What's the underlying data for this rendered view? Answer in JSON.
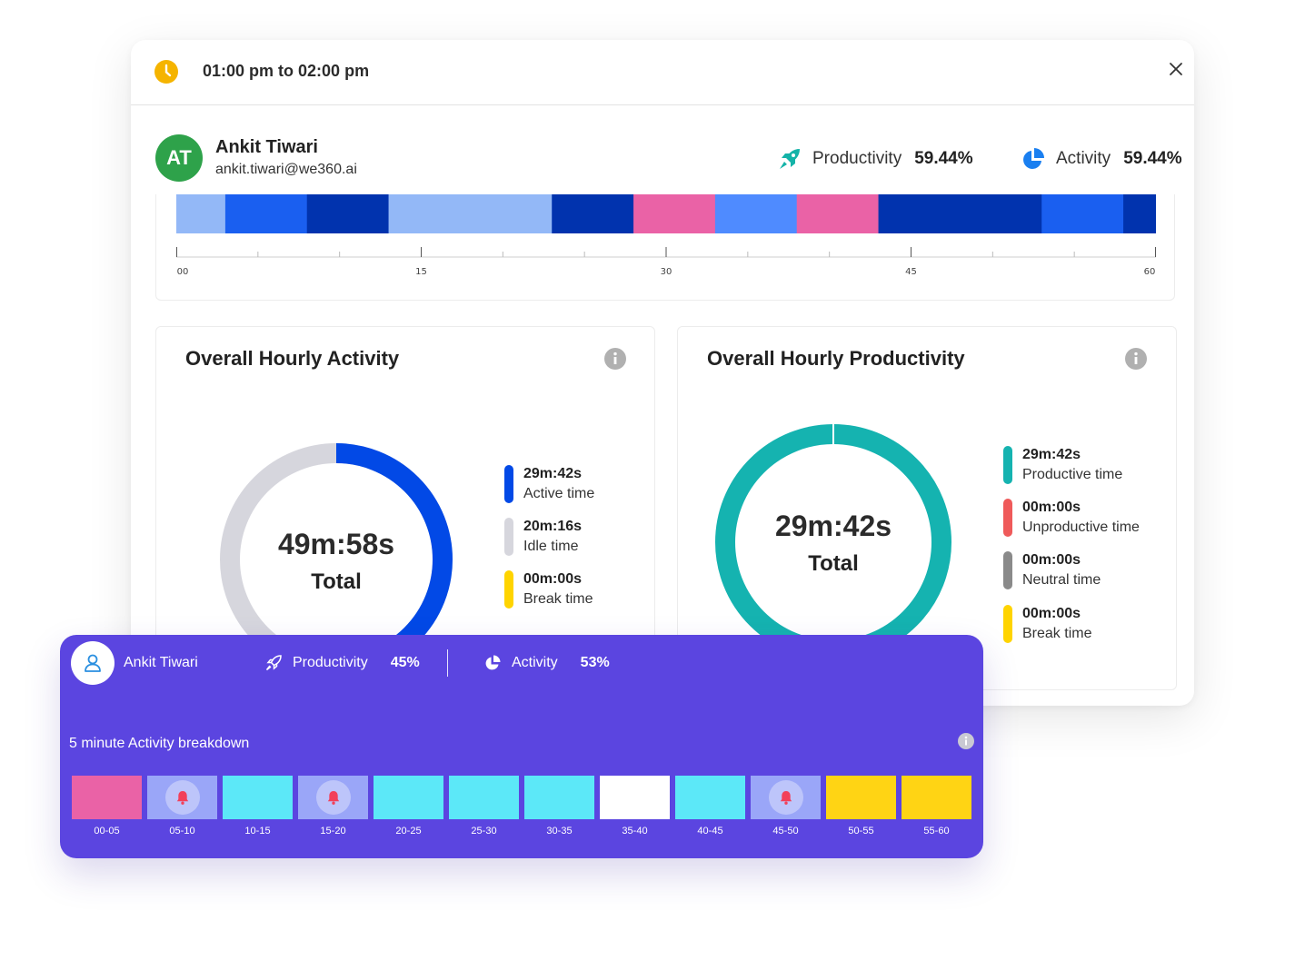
{
  "header": {
    "time_range": "01:00 pm to 02:00 pm"
  },
  "user": {
    "initials": "AT",
    "name": "Ankit Tiwari",
    "email": "ankit.tiwari@we360.ai",
    "productivity_label": "Productivity",
    "productivity_value": "59.44%",
    "activity_label": "Activity",
    "activity_value": "59.44%"
  },
  "timeline": {
    "segments_minutes": [
      3,
      5,
      5,
      10,
      5,
      5,
      5,
      5,
      10,
      5,
      2
    ],
    "segment_colors": [
      "#93b8f7",
      "#1a5ff0",
      "#0133ae",
      "#93b8f7",
      "#0133ae",
      "#ea62a6",
      "#4f8bff",
      "#ea62a6",
      "#0133ae",
      "#1a5ff0",
      "#0133ae"
    ],
    "tick_labels": [
      "00",
      "15",
      "30",
      "45",
      "60"
    ]
  },
  "hourly_activity": {
    "title": "Overall Hourly Activity",
    "center_value": "49m:58s",
    "center_label": "Total",
    "legend": [
      {
        "value": "29m:42s",
        "label": "Active time",
        "color": "#0249e6"
      },
      {
        "value": "20m:16s",
        "label": "Idle time",
        "color": "#d6d6dd"
      },
      {
        "value": "00m:00s",
        "label": "Break time",
        "color": "#ffd400"
      }
    ]
  },
  "hourly_productivity": {
    "title": "Overall Hourly Productivity",
    "center_value": "29m:42s",
    "center_label": "Total",
    "legend": [
      {
        "value": "29m:42s",
        "label": "Productive time",
        "color": "#15b3b0"
      },
      {
        "value": "00m:00s",
        "label": "Unproductive time",
        "color": "#ef5a5a"
      },
      {
        "value": "00m:00s",
        "label": "Neutral time",
        "color": "#8a8a8a"
      },
      {
        "value": "00m:00s",
        "label": "Break time",
        "color": "#ffd400"
      }
    ]
  },
  "overlay": {
    "name": "Ankit Tiwari",
    "productivity_label": "Productivity",
    "productivity_value": "45%",
    "activity_label": "Activity",
    "activity_value": "53%",
    "section_title": "5 minute Activity breakdown",
    "blocks": [
      {
        "label": "00-05",
        "color": "#ea62a6",
        "icon": ""
      },
      {
        "label": "05-10",
        "color": "#9aa6f8",
        "icon": "bell-icon"
      },
      {
        "label": "10-15",
        "color": "#5ce8f8",
        "icon": ""
      },
      {
        "label": "15-20",
        "color": "#9aa6f8",
        "icon": "bell-icon"
      },
      {
        "label": "20-25",
        "color": "#5ce8f8",
        "icon": ""
      },
      {
        "label": "25-30",
        "color": "#5ce8f8",
        "icon": ""
      },
      {
        "label": "30-35",
        "color": "#5ce8f8",
        "icon": ""
      },
      {
        "label": "35-40",
        "color": "#ffffff",
        "icon": ""
      },
      {
        "label": "40-45",
        "color": "#5ce8f8",
        "icon": ""
      },
      {
        "label": "45-50",
        "color": "#9aa6f8",
        "icon": "bell-icon"
      },
      {
        "label": "50-55",
        "color": "#ffd414",
        "icon": ""
      },
      {
        "label": "55-60",
        "color": "#ffd414",
        "icon": ""
      }
    ]
  }
}
